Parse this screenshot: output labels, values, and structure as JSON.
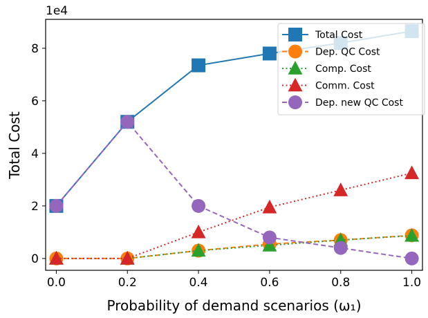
{
  "chart_data": {
    "type": "line",
    "x": [
      0.0,
      0.2,
      0.4,
      0.6,
      0.8,
      1.0
    ],
    "xlabel": "Probability of demand scenarios (ω₁)",
    "ylabel": "Total Cost",
    "y_multiplier": "1e4",
    "xlim": [
      -0.03,
      1.03
    ],
    "ylim": [
      -0.45,
      9.1
    ],
    "xticks": [
      "0.0",
      "0.2",
      "0.4",
      "0.6",
      "0.8",
      "1.0"
    ],
    "yticks": [
      "0",
      "2",
      "4",
      "6",
      "8"
    ],
    "grid": false,
    "legend_position": "top-right",
    "series": [
      {
        "name": "Total Cost",
        "values": [
          2.0,
          5.2,
          7.35,
          7.8,
          8.2,
          8.65
        ],
        "color": "#1f77b4",
        "line": "solid",
        "marker": "square"
      },
      {
        "name": "Dep. QC Cost",
        "values": [
          0.0,
          0.0,
          0.3,
          0.55,
          0.7,
          0.88
        ],
        "color": "#ff7f0e",
        "line": "dashed",
        "marker": "circle"
      },
      {
        "name": "Comp. Cost",
        "values": [
          0.0,
          0.0,
          0.3,
          0.5,
          0.7,
          0.87
        ],
        "color": "#2ca02c",
        "line": "dotted",
        "marker": "triangle"
      },
      {
        "name": "Comm. Cost",
        "values": [
          0.0,
          0.0,
          1.0,
          1.95,
          2.6,
          3.25
        ],
        "color": "#d62728",
        "line": "dotted",
        "marker": "triangle"
      },
      {
        "name": "Dep. new QC Cost",
        "values": [
          2.0,
          5.2,
          2.0,
          0.8,
          0.4,
          0.0
        ],
        "color": "#9467bd",
        "line": "dashed",
        "marker": "circle"
      }
    ]
  }
}
